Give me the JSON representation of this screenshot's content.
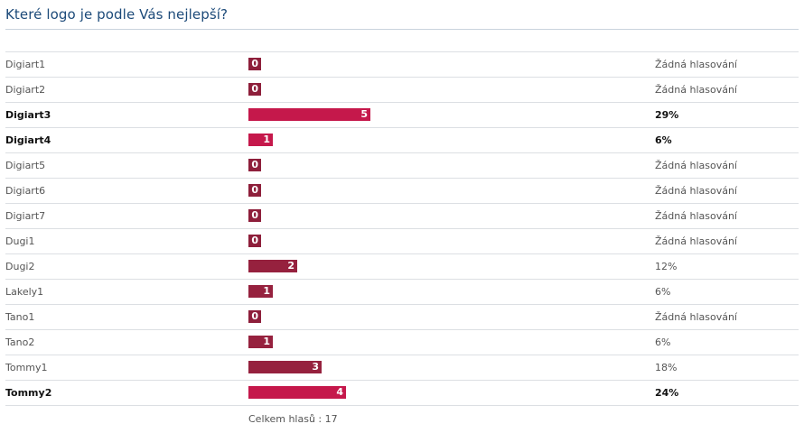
{
  "poll": {
    "title": "Které logo je podle Vás nejlepší?",
    "total_label": "Celkem hlasů : 17",
    "total_votes": 17,
    "colors": {
      "bar": "#96213e",
      "bar_highlight": "#c5184b",
      "title": "#1c4a79"
    },
    "options": [
      {
        "label": "Digiart1",
        "votes": 0,
        "percent_text": "Žádná hlasování",
        "bold": false
      },
      {
        "label": "Digiart2",
        "votes": 0,
        "percent_text": "Žádná hlasování",
        "bold": false
      },
      {
        "label": "Digiart3",
        "votes": 5,
        "percent_text": "29%",
        "bold": true
      },
      {
        "label": "Digiart4",
        "votes": 1,
        "percent_text": "6%",
        "bold": true
      },
      {
        "label": "Digiart5",
        "votes": 0,
        "percent_text": "Žádná hlasování",
        "bold": false
      },
      {
        "label": "Digiart6",
        "votes": 0,
        "percent_text": "Žádná hlasování",
        "bold": false
      },
      {
        "label": "Digiart7",
        "votes": 0,
        "percent_text": "Žádná hlasování",
        "bold": false
      },
      {
        "label": "Dugi1",
        "votes": 0,
        "percent_text": "Žádná hlasování",
        "bold": false
      },
      {
        "label": "Dugi2",
        "votes": 2,
        "percent_text": "12%",
        "bold": false
      },
      {
        "label": "Lakely1",
        "votes": 1,
        "percent_text": "6%",
        "bold": false
      },
      {
        "label": "Tano1",
        "votes": 0,
        "percent_text": "Žádná hlasování",
        "bold": false
      },
      {
        "label": "Tano2",
        "votes": 1,
        "percent_text": "6%",
        "bold": false
      },
      {
        "label": "Tommy1",
        "votes": 3,
        "percent_text": "18%",
        "bold": false
      },
      {
        "label": "Tommy2",
        "votes": 4,
        "percent_text": "24%",
        "bold": true
      }
    ]
  }
}
